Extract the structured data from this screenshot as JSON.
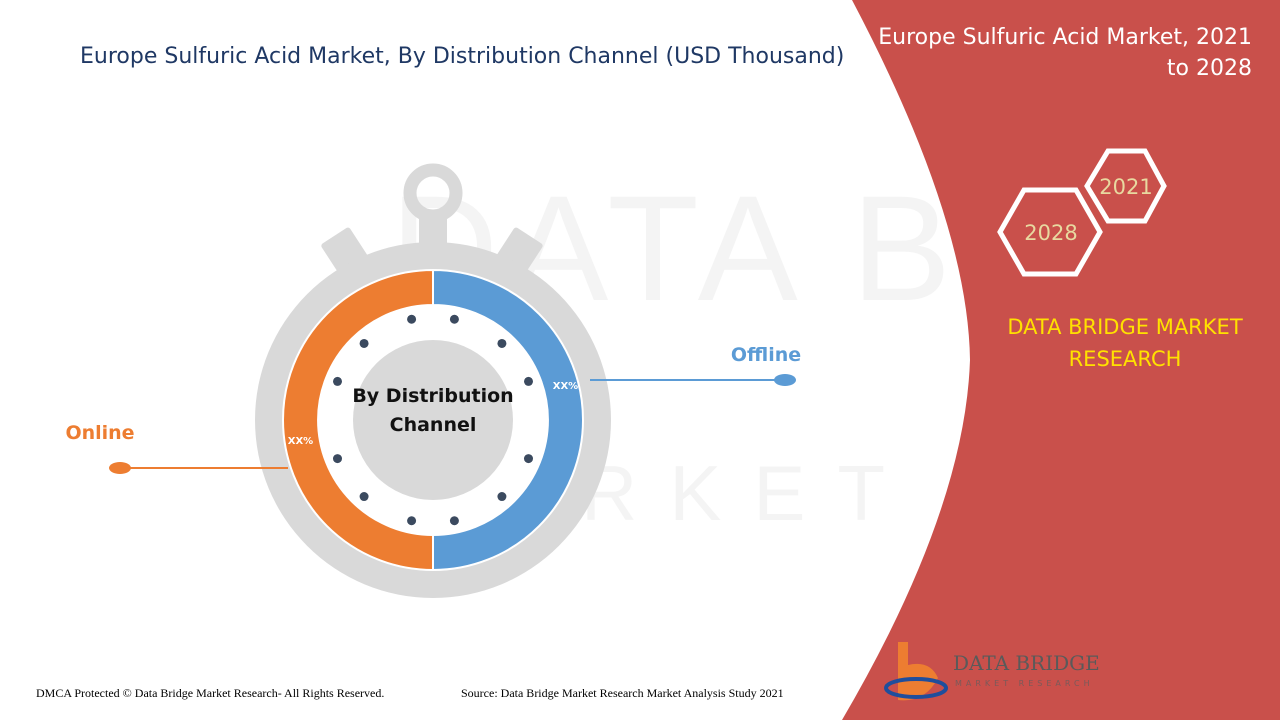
{
  "title": "Europe Sulfuric Acid Market, By Distribution Channel (USD Thousand)",
  "side_panel": {
    "title_line1": "Europe Sulfuric Acid Market, 2021",
    "title_line2": "to 2028",
    "hex_start_year": "2021",
    "hex_end_year": "2028",
    "brand_line1": "DATA BRIDGE MARKET",
    "brand_line2": "RESEARCH"
  },
  "center_label": {
    "line1": "By Distribution",
    "line2": "Channel"
  },
  "logo": {
    "name": "DATA BRIDGE",
    "tagline": "MARKET RESEARCH"
  },
  "watermark": {
    "line1": "DATA BRIDGE",
    "line2": "MARKET RESEARCH"
  },
  "footer": {
    "left": "DMCA Protected © Data Bridge Market Research- All Rights Reserved.",
    "right": "Source: Data Bridge Market Research Market Analysis Study 2021"
  },
  "colors": {
    "online": "#ed7d31",
    "offline": "#5b9bd5",
    "panel": "#c9504b",
    "title": "#1f3864"
  },
  "chart_data": {
    "type": "pie",
    "categories": [
      "Online",
      "Offline"
    ],
    "values": [
      50,
      50
    ],
    "data_labels": [
      "XX%",
      "XX%"
    ],
    "title": "Europe Sulfuric Acid Market, By Distribution Channel (USD Thousand)"
  }
}
